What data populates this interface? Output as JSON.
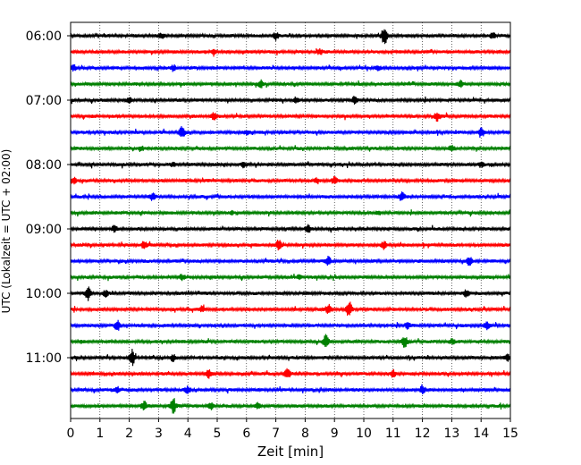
{
  "chart_data": {
    "type": "line",
    "title": "",
    "xlabel": "Zeit  [min]",
    "ylabel": "UTC (Lokalzeit = UTC + 02:00)",
    "xlim": [
      0,
      15
    ],
    "x_ticks": [
      0,
      1,
      2,
      3,
      4,
      5,
      6,
      7,
      8,
      9,
      10,
      11,
      12,
      13,
      14,
      15
    ],
    "x_tick_labels": [
      "0",
      "1",
      "2",
      "3",
      "4",
      "5",
      "6",
      "7",
      "8",
      "9",
      "10",
      "11",
      "12",
      "13",
      "14",
      "15"
    ],
    "y_tick_labels": [
      {
        "label": "06:00",
        "trace_index": 0
      },
      {
        "label": "07:00",
        "trace_index": 4
      },
      {
        "label": "08:00",
        "trace_index": 8
      },
      {
        "label": "09:00",
        "trace_index": 12
      },
      {
        "label": "10:00",
        "trace_index": 16
      },
      {
        "label": "11:00",
        "trace_index": 20
      }
    ],
    "grid": {
      "vertical": true,
      "style": "dotted"
    },
    "trace_minutes": 15,
    "traces_per_hour": 4,
    "trace_colors": [
      "#000000",
      "#ff0000",
      "#0000ff",
      "#008000"
    ],
    "traces": [
      {
        "events": [
          [
            10.7,
            1.0
          ],
          [
            7.0,
            0.35
          ],
          [
            3.1,
            0.25
          ],
          [
            14.4,
            0.35
          ]
        ]
      },
      {
        "events": [
          [
            4.9,
            0.3
          ],
          [
            8.5,
            0.25
          ]
        ]
      },
      {
        "events": [
          [
            0.1,
            0.3
          ],
          [
            3.5,
            0.3
          ],
          [
            10.5,
            0.25
          ]
        ]
      },
      {
        "events": [
          [
            6.5,
            0.35
          ],
          [
            13.3,
            0.3
          ]
        ]
      },
      {
        "events": [
          [
            9.7,
            0.4
          ],
          [
            7.7,
            0.3
          ],
          [
            2.0,
            0.2
          ]
        ]
      },
      {
        "events": [
          [
            4.9,
            0.35
          ],
          [
            12.5,
            0.45
          ]
        ]
      },
      {
        "events": [
          [
            3.8,
            0.6
          ],
          [
            14.0,
            0.6
          ],
          [
            6.0,
            0.25
          ]
        ]
      },
      {
        "events": [
          [
            2.4,
            0.25
          ],
          [
            13.0,
            0.25
          ]
        ]
      },
      {
        "events": [
          [
            5.9,
            0.3
          ],
          [
            14.0,
            0.3
          ],
          [
            3.5,
            0.2
          ]
        ]
      },
      {
        "events": [
          [
            0.1,
            0.35
          ],
          [
            9.0,
            0.35
          ],
          [
            8.4,
            0.3
          ]
        ]
      },
      {
        "events": [
          [
            2.8,
            0.35
          ],
          [
            11.3,
            0.45
          ]
        ]
      },
      {
        "events": [
          [
            5.5,
            0.2
          ],
          [
            10.5,
            0.2
          ]
        ]
      },
      {
        "events": [
          [
            8.1,
            0.4
          ],
          [
            1.5,
            0.3
          ]
        ]
      },
      {
        "events": [
          [
            2.5,
            0.45
          ],
          [
            7.1,
            0.55
          ],
          [
            10.7,
            0.4
          ]
        ]
      },
      {
        "events": [
          [
            8.8,
            0.5
          ],
          [
            13.6,
            0.45
          ]
        ]
      },
      {
        "events": [
          [
            3.8,
            0.3
          ],
          [
            7.8,
            0.25
          ]
        ]
      },
      {
        "events": [
          [
            0.6,
            0.75
          ],
          [
            13.5,
            0.4
          ],
          [
            1.2,
            0.3
          ]
        ]
      },
      {
        "events": [
          [
            8.8,
            0.6
          ],
          [
            9.5,
            0.85
          ],
          [
            4.5,
            0.25
          ]
        ]
      },
      {
        "events": [
          [
            1.6,
            0.55
          ],
          [
            14.2,
            0.4
          ],
          [
            11.5,
            0.3
          ]
        ]
      },
      {
        "events": [
          [
            8.7,
            0.75
          ],
          [
            11.4,
            0.55
          ],
          [
            13.0,
            0.3
          ]
        ]
      },
      {
        "events": [
          [
            2.1,
            0.85
          ],
          [
            3.5,
            0.35
          ],
          [
            14.9,
            0.35
          ]
        ]
      },
      {
        "events": [
          [
            4.7,
            0.5
          ],
          [
            7.4,
            0.55
          ],
          [
            11.0,
            0.35
          ]
        ]
      },
      {
        "events": [
          [
            12.0,
            0.5
          ],
          [
            4.0,
            0.35
          ],
          [
            1.6,
            0.3
          ]
        ]
      },
      {
        "events": [
          [
            2.5,
            0.5
          ],
          [
            3.5,
            0.75
          ],
          [
            4.8,
            0.4
          ],
          [
            6.4,
            0.3
          ]
        ]
      }
    ]
  }
}
